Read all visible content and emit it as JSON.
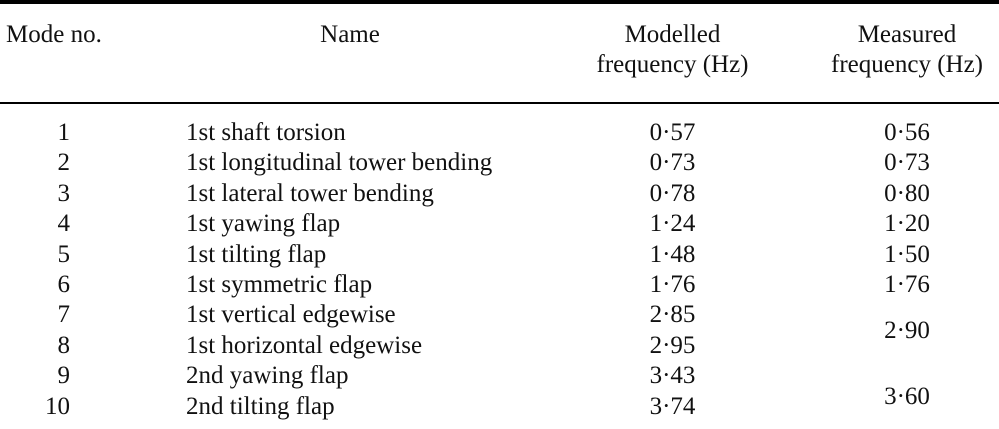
{
  "document": {
    "type": "paper-table",
    "text_color": "#111111",
    "rule_color": "#000000",
    "decimal_separator": "·"
  },
  "table": {
    "headers": {
      "mode_no": "Mode no.",
      "name": "Name",
      "modelled": {
        "line1": "Modelled",
        "line2": "frequency (Hz)"
      },
      "measured": {
        "line1": "Measured",
        "line2": "frequency (Hz)"
      }
    },
    "rows": [
      {
        "no": "1",
        "name": "1st shaft torsion",
        "modelled": "0·57",
        "measured": "0·56"
      },
      {
        "no": "2",
        "name": "1st longitudinal tower bending",
        "modelled": "0·73",
        "measured": "0·73"
      },
      {
        "no": "3",
        "name": "1st lateral tower bending",
        "modelled": "0·78",
        "measured": "0·80"
      },
      {
        "no": "4",
        "name": "1st yawing flap",
        "modelled": "1·24",
        "measured": "1·20"
      },
      {
        "no": "5",
        "name": "1st tilting flap",
        "modelled": "1·48",
        "measured": "1·50"
      },
      {
        "no": "6",
        "name": "1st symmetric flap",
        "modelled": "1·76",
        "measured": "1·76"
      },
      {
        "no": "7",
        "name": "1st vertical edgewise",
        "modelled": "2·85",
        "measured": "2·90",
        "measured_spans_rows": 2
      },
      {
        "no": "8",
        "name": "1st horizontal edgewise",
        "modelled": "2·95",
        "measured": null
      },
      {
        "no": "9",
        "name": "2nd yawing flap",
        "modelled": "3·43",
        "measured": "3·60",
        "measured_spans_rows": 2
      },
      {
        "no": "10",
        "name": "2nd tilting flap",
        "modelled": "3·74",
        "measured": null
      }
    ]
  }
}
